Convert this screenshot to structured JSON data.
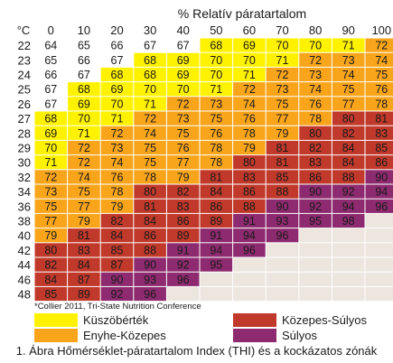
{
  "chart_data": {
    "type": "heatmap",
    "title": "% Relatív páratartalom",
    "row_unit": "°C",
    "humidity": [
      "0",
      "10",
      "20",
      "30",
      "40",
      "50",
      "60",
      "70",
      "80",
      "90",
      "100"
    ],
    "temps": [
      "22",
      "23",
      "24",
      "25",
      "26",
      "27",
      "28",
      "29",
      "30",
      "32",
      "34",
      "36",
      "38",
      "40",
      "42",
      "44",
      "46",
      "48"
    ],
    "values": [
      [
        64,
        65,
        66,
        67,
        67,
        68,
        69,
        70,
        70,
        71,
        72
      ],
      [
        65,
        66,
        67,
        68,
        69,
        70,
        70,
        71,
        72,
        73,
        74
      ],
      [
        66,
        67,
        68,
        68,
        69,
        70,
        71,
        72,
        73,
        74,
        75
      ],
      [
        67,
        68,
        69,
        70,
        70,
        71,
        72,
        73,
        74,
        75,
        76
      ],
      [
        67,
        69,
        70,
        71,
        72,
        73,
        74,
        75,
        76,
        77,
        78
      ],
      [
        68,
        70,
        71,
        72,
        73,
        75,
        76,
        77,
        78,
        80,
        81
      ],
      [
        69,
        71,
        72,
        74,
        75,
        76,
        78,
        79,
        80,
        82,
        83
      ],
      [
        70,
        72,
        73,
        75,
        76,
        78,
        79,
        81,
        82,
        84,
        85
      ],
      [
        71,
        72,
        74,
        75,
        77,
        78,
        80,
        81,
        83,
        84,
        86
      ],
      [
        72,
        74,
        76,
        78,
        79,
        81,
        83,
        85,
        86,
        88,
        90
      ],
      [
        73,
        75,
        78,
        80,
        82,
        84,
        86,
        88,
        90,
        92,
        94
      ],
      [
        75,
        77,
        79,
        81,
        83,
        86,
        88,
        90,
        92,
        94,
        96
      ],
      [
        77,
        79,
        82,
        84,
        86,
        89,
        91,
        93,
        95,
        98,
        null
      ],
      [
        79,
        81,
        84,
        86,
        89,
        91,
        94,
        96,
        null,
        null,
        null
      ],
      [
        80,
        83,
        85,
        88,
        91,
        94,
        96,
        null,
        null,
        null,
        null
      ],
      [
        82,
        84,
        87,
        90,
        92,
        95,
        null,
        null,
        null,
        null,
        null
      ],
      [
        84,
        87,
        90,
        93,
        96,
        null,
        null,
        null,
        null,
        null,
        null
      ],
      [
        85,
        89,
        92,
        96,
        null,
        null,
        null,
        null,
        null,
        null,
        null
      ]
    ],
    "zones": [
      {
        "label": "Küszöbérték",
        "min": 68,
        "max": 71,
        "color": "#fff200"
      },
      {
        "label": "Enyhe-Közepes",
        "min": 72,
        "max": 79,
        "color": "#f9a51b"
      },
      {
        "label": "Közepes-Súlyos",
        "min": 80,
        "max": 89,
        "color": "#c0392b"
      },
      {
        "label": "Súlyos",
        "min": 90,
        "max": 98,
        "color": "#8e2a6f"
      }
    ],
    "below_threshold_color": "#ffffff",
    "empty_color": "#ece6df"
  },
  "footnote": "*Collier 2011, Tri-State Nutrition Conference",
  "caption": "1. Ábra Hőmérséklet-páratartalom Index (THI) és a kockázatos zónák"
}
